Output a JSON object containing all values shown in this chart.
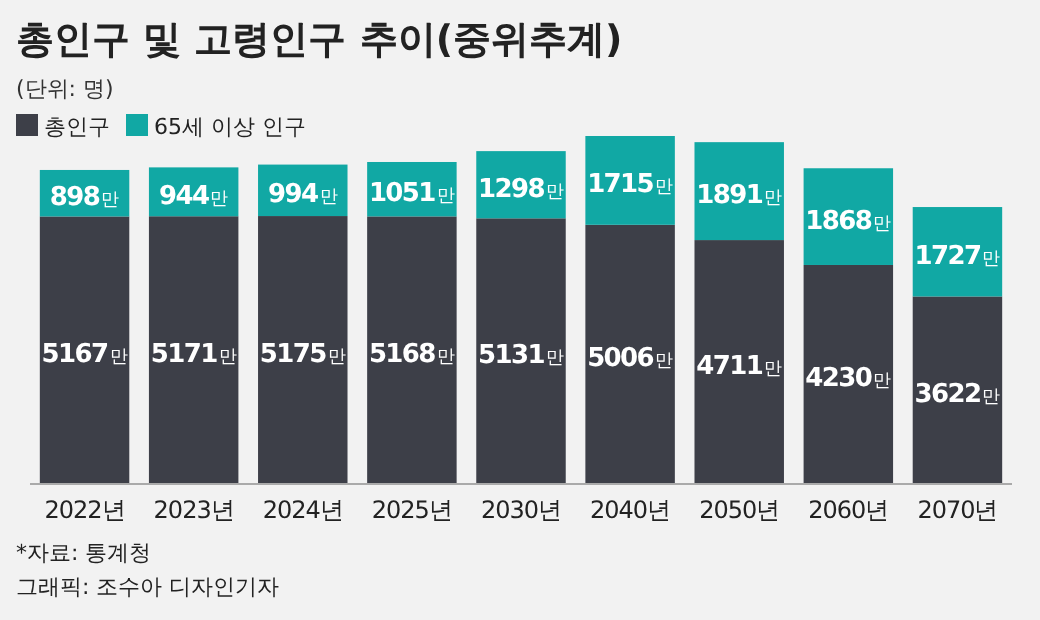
{
  "chart_data": {
    "type": "bar",
    "stacked": true,
    "title": "총인구 및 고령인구 추이(중위추계)",
    "subtitle": "(단위: 명)",
    "legend": "top left",
    "categories": [
      "2022년",
      "2023년",
      "2024년",
      "2025년",
      "2030년",
      "2040년",
      "2050년",
      "2060년",
      "2070년"
    ],
    "series": [
      {
        "name": "총인구",
        "color": "#3d3f48",
        "values": [
          5167,
          5171,
          5175,
          5168,
          5131,
          5006,
          4711,
          4230,
          3622
        ],
        "value_labels": [
          "5167만",
          "5171만",
          "5175만",
          "5168만",
          "5131만",
          "5006만",
          "4711만",
          "4230만",
          "3622만"
        ]
      },
      {
        "name": "65세 이상 인구",
        "color": "#11a8a4",
        "values": [
          898,
          944,
          994,
          1051,
          1298,
          1715,
          1891,
          1868,
          1727
        ],
        "value_labels": [
          "898만",
          "944만",
          "994만",
          "1051만",
          "1298만",
          "1715만",
          "1891만",
          "1868만",
          "1727만"
        ]
      }
    ],
    "annotations": [
      "*자료: 통계청",
      "그래픽: 조수아 디자인기자"
    ]
  }
}
